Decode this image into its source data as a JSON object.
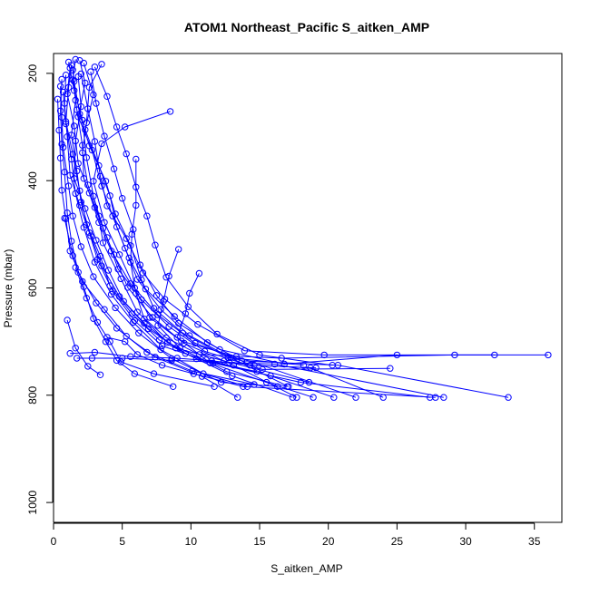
{
  "chart_data": {
    "type": "scatter",
    "title": "ATOM1 Northeast_Pacific S_aitken_AMP",
    "xlabel": "S_aitken_AMP",
    "ylabel": "Pressure (mbar)",
    "xlim": [
      0,
      37
    ],
    "ylim": [
      1037,
      163
    ],
    "y_axis_inverted": true,
    "grid": false,
    "legend": "none",
    "x_ticks": [
      0,
      5,
      10,
      15,
      20,
      25,
      30,
      35
    ],
    "y_ticks": [
      200,
      400,
      600,
      800,
      1000
    ],
    "colors": {
      "series": "#0000ff",
      "axis": "#000000",
      "background": "#ffffff"
    },
    "series": [
      {
        "points": [
          [
            3.5,
            183
          ],
          [
            2.6,
            226
          ],
          [
            2.4,
            292
          ],
          [
            2.1,
            348
          ],
          [
            2.5,
            408
          ],
          [
            3.3,
            466
          ],
          [
            3.6,
            516
          ],
          [
            4.9,
            583
          ],
          [
            6.1,
            645
          ],
          [
            8.2,
            693
          ],
          [
            10.6,
            724
          ],
          [
            16.6,
            731
          ],
          [
            29.2,
            725
          ],
          [
            36.0,
            725
          ]
        ]
      },
      {
        "points": [
          [
            1.2,
            190
          ],
          [
            1.0,
            238
          ],
          [
            1.5,
            298
          ],
          [
            1.8,
            368
          ],
          [
            2.6,
            423
          ],
          [
            3.3,
            478
          ],
          [
            4.2,
            531
          ],
          [
            5.6,
            592
          ],
          [
            7.6,
            650
          ],
          [
            10.3,
            703
          ],
          [
            13.7,
            736
          ],
          [
            20.7,
            744
          ],
          [
            33.1,
            804
          ]
        ]
      },
      {
        "points": [
          [
            1.6,
            174
          ],
          [
            1.4,
            212
          ],
          [
            1.7,
            268
          ],
          [
            2.1,
            334
          ],
          [
            2.2,
            396
          ],
          [
            3.0,
            450
          ],
          [
            3.9,
            506
          ],
          [
            4.7,
            565
          ],
          [
            6.4,
            622
          ],
          [
            8.4,
            672
          ],
          [
            11.0,
            718
          ],
          [
            15.2,
            752
          ],
          [
            24.5,
            750
          ]
        ]
      },
      {
        "points": [
          [
            0.9,
            203
          ],
          [
            0.8,
            256
          ],
          [
            1.0,
            318
          ],
          [
            1.2,
            390
          ],
          [
            1.9,
            446
          ],
          [
            2.6,
            497
          ],
          [
            3.2,
            547
          ],
          [
            4.3,
            606
          ],
          [
            5.9,
            661
          ],
          [
            7.9,
            708
          ],
          [
            11.6,
            740
          ],
          [
            18.0,
            776
          ],
          [
            27.4,
            804
          ]
        ]
      },
      {
        "points": [
          [
            1.9,
            176
          ],
          [
            2.3,
            218
          ],
          [
            1.8,
            281
          ],
          [
            2.8,
            343
          ],
          [
            3.5,
            410
          ],
          [
            4.3,
            466
          ],
          [
            5.2,
            526
          ],
          [
            6.1,
            584
          ],
          [
            7.8,
            640
          ],
          [
            9.9,
            689
          ],
          [
            12.9,
            730
          ],
          [
            17.1,
            784
          ]
        ]
      },
      {
        "points": [
          [
            1.1,
            179
          ],
          [
            1.5,
            232
          ],
          [
            2.1,
            287
          ],
          [
            2.4,
            357
          ],
          [
            2.9,
            429
          ],
          [
            3.6,
            489
          ],
          [
            4.4,
            538
          ],
          [
            5.4,
            599
          ],
          [
            7.2,
            655
          ],
          [
            9.3,
            699
          ],
          [
            13.3,
            728
          ],
          [
            22.0,
            804
          ]
        ]
      },
      {
        "points": [
          [
            0.6,
            211
          ],
          [
            0.5,
            270
          ],
          [
            0.6,
            332
          ],
          [
            0.8,
            384
          ],
          [
            1.0,
            460
          ],
          [
            1.3,
            513
          ],
          [
            1.8,
            571
          ],
          [
            3.1,
            628
          ],
          [
            4.6,
            675
          ],
          [
            6.8,
            720
          ],
          [
            10.1,
            755
          ],
          [
            14.6,
            780
          ]
        ]
      },
      {
        "points": [
          [
            2.2,
            181
          ],
          [
            2.9,
            240
          ],
          [
            2.3,
            305
          ],
          [
            3.3,
            372
          ],
          [
            4.1,
            428
          ],
          [
            4.6,
            486
          ],
          [
            5.5,
            544
          ],
          [
            6.7,
            602
          ],
          [
            8.8,
            653
          ],
          [
            11.2,
            702
          ],
          [
            14.3,
            744
          ],
          [
            19.1,
            749
          ]
        ]
      },
      {
        "points": [
          [
            1.4,
            194
          ],
          [
            1.6,
            250
          ],
          [
            1.3,
            315
          ],
          [
            1.7,
            382
          ],
          [
            2.0,
            440
          ],
          [
            2.7,
            503
          ],
          [
            3.5,
            559
          ],
          [
            4.8,
            616
          ],
          [
            6.6,
            666
          ],
          [
            8.9,
            712
          ],
          [
            12.4,
            736
          ],
          [
            18.6,
            776
          ]
        ]
      },
      {
        "points": [
          [
            0.3,
            248
          ],
          [
            0.4,
            306
          ],
          [
            0.5,
            358
          ],
          [
            0.6,
            418
          ],
          [
            0.9,
            471
          ],
          [
            1.2,
            531
          ],
          [
            2.1,
            588
          ],
          [
            3.7,
            640
          ],
          [
            5.3,
            690
          ],
          [
            7.4,
            729
          ],
          [
            10.8,
            765
          ],
          [
            13.4,
            804
          ]
        ]
      },
      {
        "points": [
          [
            2.7,
            197
          ],
          [
            3.1,
            256
          ],
          [
            3.7,
            317
          ],
          [
            4.4,
            378
          ],
          [
            5.0,
            433
          ],
          [
            5.8,
            491
          ],
          [
            6.3,
            557
          ],
          [
            7.5,
            614
          ],
          [
            9.1,
            666
          ],
          [
            12.1,
            715
          ],
          [
            16.8,
            742
          ],
          [
            25.0,
            725
          ]
        ]
      },
      {
        "points": [
          [
            1.8,
            206
          ],
          [
            2.0,
            262
          ],
          [
            1.6,
            326
          ],
          [
            1.5,
            396
          ],
          [
            2.3,
            452
          ],
          [
            3.1,
            511
          ],
          [
            4.0,
            567
          ],
          [
            5.1,
            625
          ],
          [
            6.9,
            676
          ],
          [
            9.6,
            722
          ],
          [
            13.0,
            764
          ],
          [
            17.4,
            804
          ]
        ]
      },
      {
        "points": [
          [
            0.5,
            224
          ],
          [
            0.6,
            282
          ],
          [
            0.7,
            338
          ],
          [
            1.1,
            410
          ],
          [
            1.4,
            466
          ],
          [
            2.0,
            523
          ],
          [
            2.9,
            579
          ],
          [
            4.5,
            637
          ],
          [
            6.2,
            684
          ],
          [
            8.6,
            732
          ],
          [
            12.2,
            776
          ],
          [
            16.3,
            784
          ]
        ]
      },
      {
        "points": [
          [
            3.0,
            188
          ],
          [
            3.9,
            243
          ],
          [
            4.6,
            300
          ],
          [
            5.3,
            350
          ],
          [
            6.0,
            412
          ],
          [
            6.8,
            466
          ],
          [
            7.4,
            520
          ],
          [
            8.2,
            580
          ],
          [
            9.8,
            635
          ],
          [
            11.9,
            686
          ],
          [
            15.0,
            725
          ],
          [
            20.3,
            744
          ]
        ]
      },
      {
        "points": [
          [
            1.3,
            185
          ],
          [
            1.1,
            226
          ],
          [
            0.9,
            290
          ],
          [
            1.4,
            351
          ],
          [
            1.9,
            419
          ],
          [
            2.4,
            482
          ],
          [
            3.4,
            541
          ],
          [
            4.1,
            596
          ],
          [
            5.7,
            648
          ],
          [
            7.7,
            697
          ],
          [
            10.4,
            732
          ],
          [
            14.8,
            756
          ]
        ]
      },
      {
        "points": [
          [
            2.0,
            201
          ],
          [
            2.5,
            266
          ],
          [
            3.0,
            327
          ],
          [
            3.4,
            392
          ],
          [
            3.9,
            447
          ],
          [
            5.3,
            508
          ],
          [
            6.5,
            572
          ],
          [
            8.1,
            621
          ],
          [
            10.5,
            668
          ],
          [
            13.9,
            717
          ],
          [
            19.7,
            725
          ],
          [
            32.1,
            725
          ]
        ]
      },
      {
        "points": [
          [
            0.7,
            235
          ],
          [
            0.9,
            294
          ],
          [
            1.3,
            360
          ],
          [
            1.6,
            424
          ],
          [
            2.2,
            487
          ],
          [
            3.0,
            552
          ],
          [
            4.2,
            612
          ],
          [
            5.8,
            664
          ],
          [
            7.8,
            715
          ],
          [
            10.9,
            760
          ],
          [
            14.1,
            784
          ]
        ]
      },
      {
        "points": [
          [
            1.5,
            215
          ],
          [
            1.9,
            276
          ],
          [
            2.6,
            335
          ],
          [
            3.8,
            401
          ],
          [
            4.5,
            462
          ],
          [
            5.6,
            521
          ],
          [
            6.4,
            585
          ],
          [
            7.3,
            638
          ],
          [
            9.4,
            684
          ],
          [
            12.7,
            730
          ],
          [
            18.2,
            744
          ]
        ]
      },
      {
        "points": [
          [
            8.5,
            271
          ],
          [
            5.2,
            300
          ],
          [
            3.5,
            331
          ],
          [
            2.9,
            401
          ],
          [
            3.7,
            478
          ],
          [
            4.8,
            538
          ],
          [
            5.9,
            600
          ],
          [
            7.0,
            655
          ],
          [
            9.5,
            703
          ],
          [
            13.1,
            744
          ],
          [
            17.7,
            804
          ]
        ]
      },
      {
        "points": [
          [
            6.0,
            360
          ],
          [
            6.0,
            446
          ],
          [
            5.7,
            500
          ],
          [
            5.6,
            552
          ],
          [
            6.0,
            610
          ],
          [
            6.6,
            658
          ],
          [
            8.3,
            702
          ],
          [
            11.4,
            740
          ],
          [
            15.5,
            776
          ],
          [
            18.9,
            804
          ]
        ]
      },
      {
        "points": [
          [
            9.1,
            528
          ],
          [
            8.4,
            578
          ],
          [
            8.0,
            625
          ],
          [
            7.6,
            670
          ],
          [
            9.2,
            712
          ],
          [
            12.6,
            756
          ],
          [
            17.0,
            784
          ]
        ]
      },
      {
        "points": [
          [
            10.6,
            573
          ],
          [
            9.9,
            610
          ],
          [
            9.6,
            648
          ],
          [
            9.0,
            692
          ],
          [
            11.1,
            734
          ],
          [
            15.8,
            764
          ],
          [
            20.4,
            804
          ]
        ]
      },
      {
        "points": [
          [
            0.8,
            470
          ],
          [
            1.4,
            540
          ],
          [
            2.2,
            598
          ],
          [
            2.9,
            657
          ],
          [
            3.8,
            700
          ],
          [
            4.6,
            735
          ],
          [
            5.9,
            760
          ],
          [
            8.7,
            784
          ]
        ]
      },
      {
        "points": [
          [
            1.6,
            562
          ],
          [
            2.4,
            619
          ],
          [
            3.2,
            664
          ],
          [
            4.1,
            700
          ],
          [
            4.9,
            738
          ],
          [
            7.3,
            760
          ],
          [
            11.7,
            784
          ]
        ]
      },
      {
        "points": [
          [
            1.0,
            660
          ],
          [
            1.6,
            712
          ],
          [
            2.5,
            746
          ],
          [
            3.4,
            762
          ]
        ]
      },
      {
        "points": [
          [
            3.9,
            692
          ],
          [
            5.2,
            700
          ],
          [
            6.1,
            724
          ],
          [
            7.9,
            744
          ],
          [
            10.2,
            760
          ],
          [
            13.8,
            784
          ],
          [
            27.8,
            804
          ]
        ]
      },
      {
        "points": [
          [
            1.7,
            731
          ],
          [
            2.8,
            731
          ],
          [
            5.0,
            731
          ],
          [
            8.6,
            735
          ],
          [
            12.8,
            739
          ],
          [
            16.1,
            742
          ],
          [
            28.4,
            804
          ]
        ]
      },
      {
        "points": [
          [
            1.2,
            722
          ],
          [
            3.0,
            720
          ],
          [
            5.6,
            728
          ],
          [
            9.0,
            731
          ],
          [
            11.5,
            736
          ],
          [
            14.6,
            744
          ],
          [
            18.7,
            749
          ],
          [
            24.0,
            804
          ]
        ]
      }
    ]
  }
}
